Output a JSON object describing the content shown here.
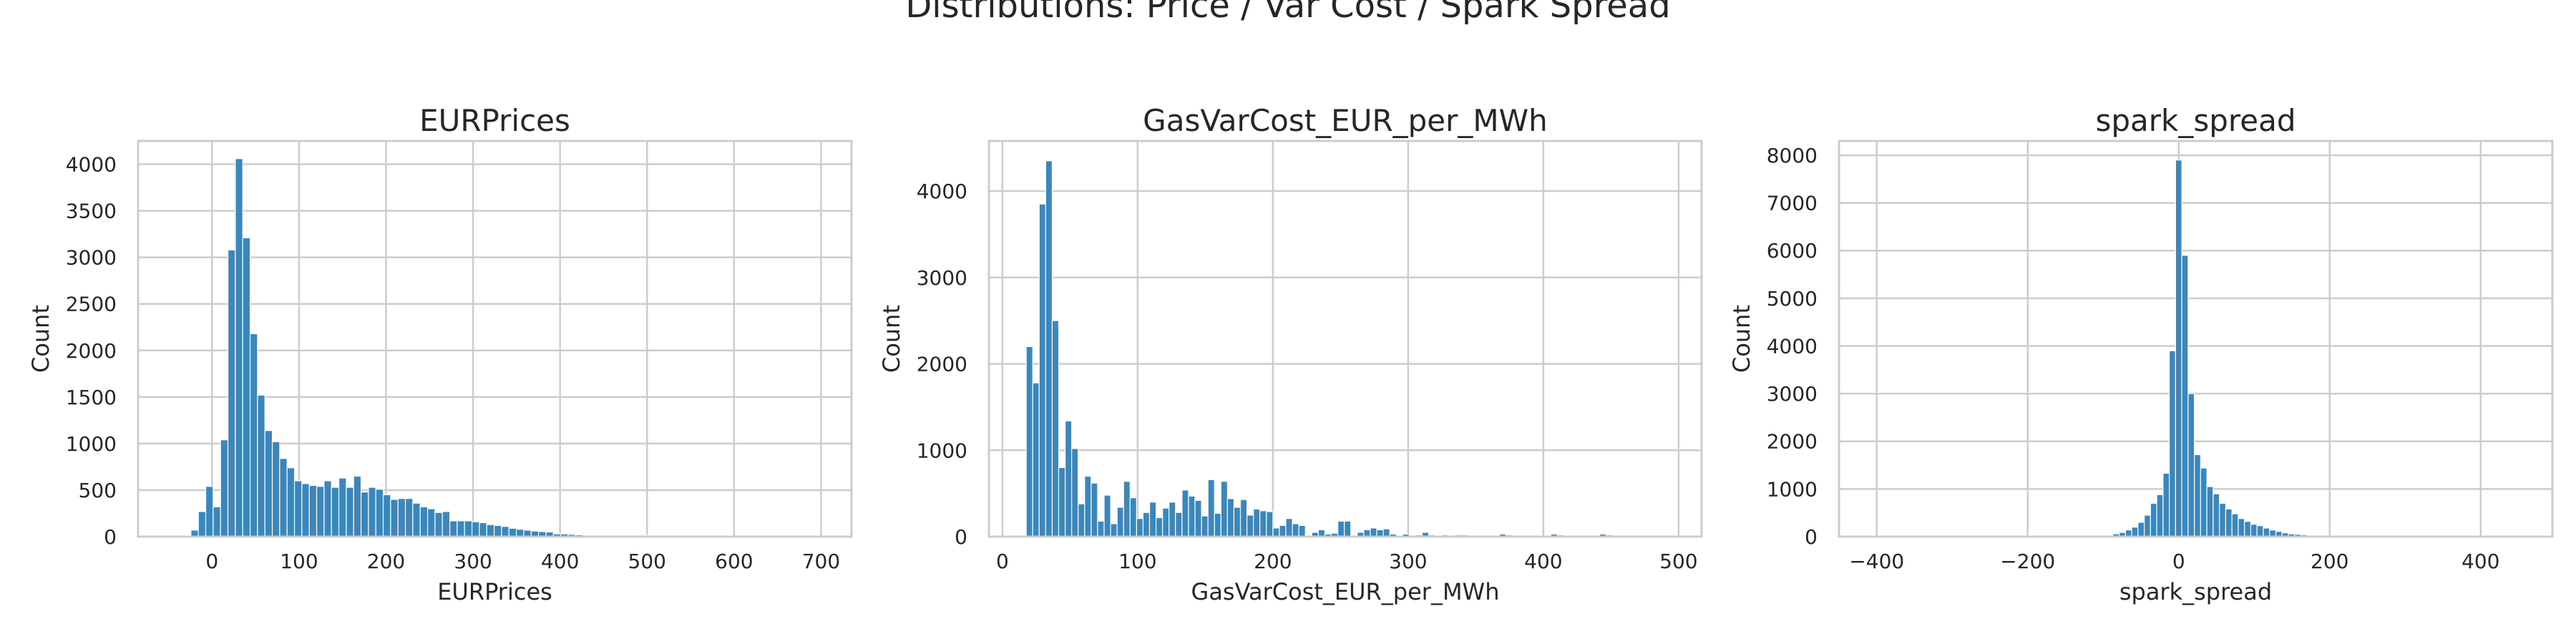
{
  "suptitle": "Distributions: Price / Var Cost / Spark Spread",
  "colors": {
    "bar": "#3a87bd",
    "grid": "#cccccc",
    "frame": "#cccccc",
    "text": "#262626"
  },
  "chart_data": [
    {
      "type": "bar",
      "title": "EURPrices",
      "xlabel": "EURPrices",
      "ylabel": "Count",
      "xlim": [
        -85,
        735
      ],
      "ylim": [
        0,
        4250
      ],
      "xticks": [
        0,
        100,
        200,
        300,
        400,
        500,
        600,
        700
      ],
      "xtick_labels": [
        "0",
        "100",
        "200",
        "300",
        "400",
        "500",
        "600",
        "700"
      ],
      "yticks": [
        0,
        500,
        1000,
        1500,
        2000,
        2500,
        3000,
        3500,
        4000
      ],
      "ytick_labels": [
        "0",
        "500",
        "1000",
        "1500",
        "2000",
        "2500",
        "3000",
        "3500",
        "4000"
      ],
      "grid": true,
      "bin_width": 8.5,
      "x": [
        -20,
        -11.5,
        -3,
        5.5,
        14,
        22.5,
        31,
        39.5,
        48,
        56.5,
        65,
        73.5,
        82,
        90.5,
        99,
        107.5,
        116,
        124.5,
        133,
        141.5,
        150,
        158.5,
        167,
        175.5,
        184,
        192.5,
        201,
        209.5,
        218,
        226.5,
        235,
        243.5,
        252,
        260.5,
        269,
        277.5,
        286,
        294.5,
        303,
        311.5,
        320,
        328.5,
        337,
        345.5,
        354,
        362.5,
        371,
        379.5,
        388,
        396.5,
        405,
        413.5,
        422,
        430.5,
        439,
        447.5,
        456,
        464.5,
        473,
        481.5,
        490,
        498.5
      ],
      "values": [
        70,
        270,
        540,
        320,
        1040,
        3080,
        4060,
        3210,
        2180,
        1520,
        1140,
        1020,
        840,
        740,
        600,
        570,
        550,
        540,
        600,
        530,
        630,
        530,
        650,
        480,
        530,
        510,
        450,
        400,
        410,
        410,
        360,
        320,
        300,
        260,
        270,
        170,
        170,
        170,
        160,
        150,
        130,
        120,
        110,
        90,
        80,
        70,
        60,
        55,
        50,
        30,
        30,
        25,
        20,
        15,
        10,
        10,
        8,
        6,
        5,
        4,
        3,
        15
      ]
    },
    {
      "type": "bar",
      "title": "GasVarCost_EUR_per_MWh",
      "xlabel": "GasVarCost_EUR_per_MWh",
      "ylabel": "Count",
      "xlim": [
        -10,
        517
      ],
      "ylim": [
        0,
        4580
      ],
      "xticks": [
        0,
        100,
        200,
        300,
        400,
        500
      ],
      "xtick_labels": [
        "0",
        "100",
        "200",
        "300",
        "400",
        "500"
      ],
      "yticks": [
        0,
        1000,
        2000,
        3000,
        4000
      ],
      "ytick_labels": [
        "0",
        "1000",
        "2000",
        "3000",
        "4000"
      ],
      "grid": true,
      "bin_width": 4.8,
      "x": [
        20,
        24.8,
        29.6,
        34.4,
        39.2,
        44,
        48.8,
        53.6,
        58.4,
        63.2,
        68,
        72.8,
        77.6,
        82.4,
        87.2,
        92,
        96.8,
        101.6,
        106.4,
        111.2,
        116,
        120.8,
        125.6,
        130.4,
        135.2,
        140,
        144.8,
        149.6,
        154.4,
        159.2,
        164,
        168.8,
        173.6,
        178.4,
        183.2,
        188,
        192.8,
        197.6,
        202.4,
        207.2,
        212,
        216.8,
        221.6,
        226.4,
        231.2,
        236,
        240.8,
        245.6,
        250.4,
        255.2,
        260,
        264.8,
        269.6,
        274.4,
        279.2,
        284,
        288.8,
        293.6,
        298.4,
        303.2,
        308,
        312.8,
        317.6,
        322.4,
        327.2,
        332,
        336.8,
        341.6,
        346.4,
        370,
        374.8,
        408,
        412.8,
        420,
        444,
        448.8
      ],
      "values": [
        2200,
        1780,
        3850,
        4350,
        2500,
        800,
        1340,
        1020,
        380,
        700,
        620,
        180,
        480,
        150,
        340,
        640,
        450,
        210,
        280,
        400,
        220,
        330,
        400,
        280,
        540,
        470,
        420,
        240,
        660,
        270,
        640,
        440,
        340,
        430,
        250,
        320,
        300,
        290,
        100,
        130,
        210,
        150,
        130,
        10,
        50,
        80,
        30,
        40,
        180,
        180,
        10,
        50,
        80,
        100,
        80,
        90,
        30,
        10,
        30,
        10,
        20,
        50,
        20,
        10,
        20,
        15,
        20,
        20,
        10,
        30,
        20,
        30,
        20,
        10,
        30,
        20
      ]
    },
    {
      "type": "bar",
      "title": "spark_spread",
      "xlabel": "spark_spread",
      "ylabel": "Count",
      "xlim": [
        -450,
        495
      ],
      "ylim": [
        0,
        8300
      ],
      "xticks": [
        -400,
        -200,
        0,
        200,
        400
      ],
      "xtick_labels": [
        "−400",
        "−200",
        "0",
        "200",
        "400"
      ],
      "yticks": [
        0,
        1000,
        2000,
        3000,
        4000,
        5000,
        6000,
        7000,
        8000
      ],
      "ytick_labels": [
        "0",
        "1000",
        "2000",
        "3000",
        "4000",
        "5000",
        "6000",
        "7000",
        "8000"
      ],
      "grid": true,
      "bin_width": 8.3,
      "x": [
        -99.6,
        -91.3,
        -83,
        -74.7,
        -66.4,
        -58.1,
        -49.8,
        -41.5,
        -33.2,
        -24.9,
        -16.6,
        -8.3,
        0,
        8.3,
        16.6,
        24.9,
        33.2,
        41.5,
        49.8,
        58.1,
        66.4,
        74.7,
        83,
        91.3,
        99.6,
        107.9,
        116.2,
        124.5,
        132.8,
        141.1,
        149.4,
        157.7,
        166,
        174.3,
        182.6,
        190.9,
        199.2,
        207.5
      ],
      "values": [
        20,
        30,
        60,
        90,
        140,
        200,
        300,
        450,
        700,
        880,
        1330,
        3900,
        7900,
        5900,
        3000,
        1720,
        1440,
        1050,
        900,
        700,
        580,
        480,
        380,
        320,
        260,
        230,
        180,
        140,
        110,
        80,
        60,
        50,
        40,
        30,
        20,
        15,
        10,
        30
      ]
    }
  ]
}
